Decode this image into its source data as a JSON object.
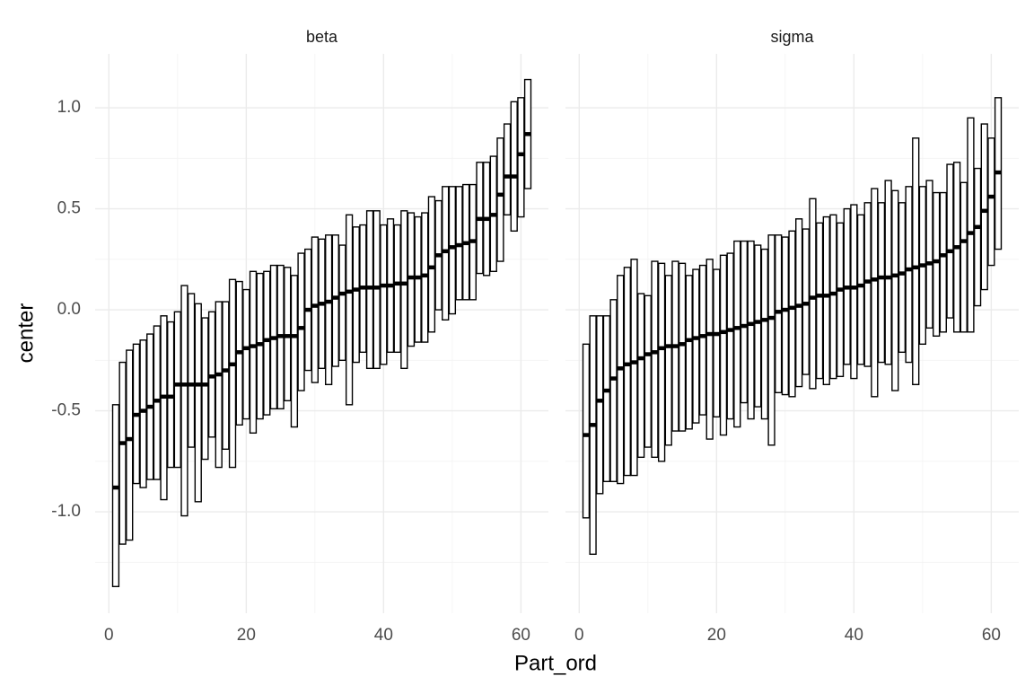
{
  "chart_data": {
    "type": "crossbar",
    "xlabel": "Part_ord",
    "ylabel": "center",
    "xlim": [
      -2,
      64
    ],
    "ylim": [
      -1.502,
      1.267
    ],
    "xticks": [
      0,
      20,
      40,
      60
    ],
    "xminorticks": [
      10,
      30,
      50
    ],
    "yticks": [
      {
        "value": -1,
        "label": "-1.0"
      },
      -0.5,
      {
        "value": 0,
        "label": "0.0"
      },
      0.5,
      {
        "value": 1,
        "label": "1.0"
      }
    ],
    "yminorticks": [
      -1.25,
      -0.75,
      -0.25,
      0.25,
      0.75
    ],
    "grid": true,
    "color": "#000000",
    "fill": "#ffffff",
    "facets": [
      {
        "title": "beta",
        "x": [
          1,
          2,
          3,
          4,
          5,
          6,
          7,
          8,
          9,
          10,
          11,
          12,
          13,
          14,
          15,
          16,
          17,
          18,
          19,
          20,
          21,
          22,
          23,
          24,
          25,
          26,
          27,
          28,
          29,
          30,
          31,
          32,
          33,
          34,
          35,
          36,
          37,
          38,
          39,
          40,
          41,
          42,
          43,
          44,
          45,
          46,
          47,
          48,
          49,
          50,
          51,
          52,
          53,
          54,
          55,
          56,
          57,
          58,
          59,
          60,
          61
        ],
        "center": [
          -0.88,
          -0.66,
          -0.64,
          -0.52,
          -0.5,
          -0.48,
          -0.45,
          -0.43,
          -0.43,
          -0.37,
          -0.37,
          -0.37,
          -0.37,
          -0.37,
          -0.33,
          -0.32,
          -0.3,
          -0.27,
          -0.21,
          -0.19,
          -0.18,
          -0.17,
          -0.15,
          -0.14,
          -0.13,
          -0.13,
          -0.13,
          -0.09,
          0.0,
          0.02,
          0.03,
          0.04,
          0.06,
          0.08,
          0.09,
          0.1,
          0.11,
          0.11,
          0.11,
          0.12,
          0.12,
          0.13,
          0.13,
          0.16,
          0.16,
          0.17,
          0.21,
          0.27,
          0.29,
          0.31,
          0.32,
          0.33,
          0.34,
          0.45,
          0.45,
          0.47,
          0.57,
          0.66,
          0.66,
          0.77,
          0.87
        ],
        "lower": [
          -1.37,
          -1.16,
          -1.14,
          -0.86,
          -0.88,
          -0.84,
          -0.84,
          -0.94,
          -0.78,
          -0.78,
          -1.02,
          -0.68,
          -0.95,
          -0.74,
          -0.63,
          -0.78,
          -0.69,
          -0.78,
          -0.57,
          -0.54,
          -0.61,
          -0.54,
          -0.52,
          -0.49,
          -0.49,
          -0.45,
          -0.58,
          -0.4,
          -0.3,
          -0.36,
          -0.29,
          -0.37,
          -0.28,
          -0.25,
          -0.47,
          -0.26,
          -0.21,
          -0.29,
          -0.29,
          -0.27,
          -0.21,
          -0.21,
          -0.29,
          -0.18,
          -0.16,
          -0.16,
          -0.11,
          0.0,
          -0.05,
          -0.02,
          0.05,
          0.05,
          0.05,
          0.18,
          0.17,
          0.19,
          0.24,
          0.47,
          0.39,
          0.46,
          0.6
        ],
        "upper": [
          -0.47,
          -0.26,
          -0.2,
          -0.17,
          -0.15,
          -0.12,
          -0.08,
          -0.03,
          -0.06,
          -0.01,
          0.12,
          0.08,
          0.03,
          -0.04,
          -0.01,
          0.04,
          0.04,
          0.15,
          0.14,
          0.1,
          0.19,
          0.18,
          0.19,
          0.22,
          0.22,
          0.21,
          0.17,
          0.28,
          0.3,
          0.36,
          0.35,
          0.37,
          0.37,
          0.32,
          0.47,
          0.41,
          0.42,
          0.49,
          0.49,
          0.42,
          0.45,
          0.42,
          0.49,
          0.48,
          0.46,
          0.48,
          0.56,
          0.54,
          0.61,
          0.61,
          0.61,
          0.62,
          0.62,
          0.73,
          0.73,
          0.76,
          0.85,
          0.92,
          1.03,
          1.05,
          1.14
        ]
      },
      {
        "title": "sigma",
        "x": [
          1,
          2,
          3,
          4,
          5,
          6,
          7,
          8,
          9,
          10,
          11,
          12,
          13,
          14,
          15,
          16,
          17,
          18,
          19,
          20,
          21,
          22,
          23,
          24,
          25,
          26,
          27,
          28,
          29,
          30,
          31,
          32,
          33,
          34,
          35,
          36,
          37,
          38,
          39,
          40,
          41,
          42,
          43,
          44,
          45,
          46,
          47,
          48,
          49,
          50,
          51,
          52,
          53,
          54,
          55,
          56,
          57,
          58,
          59,
          60,
          61
        ],
        "center": [
          -0.62,
          -0.57,
          -0.45,
          -0.4,
          -0.34,
          -0.29,
          -0.27,
          -0.26,
          -0.24,
          -0.22,
          -0.21,
          -0.19,
          -0.18,
          -0.18,
          -0.17,
          -0.15,
          -0.14,
          -0.13,
          -0.12,
          -0.12,
          -0.11,
          -0.1,
          -0.09,
          -0.08,
          -0.07,
          -0.06,
          -0.05,
          -0.04,
          -0.01,
          0.0,
          0.01,
          0.02,
          0.03,
          0.06,
          0.07,
          0.07,
          0.08,
          0.1,
          0.11,
          0.11,
          0.12,
          0.14,
          0.15,
          0.16,
          0.16,
          0.17,
          0.18,
          0.2,
          0.21,
          0.22,
          0.23,
          0.24,
          0.27,
          0.29,
          0.31,
          0.34,
          0.38,
          0.41,
          0.49,
          0.56,
          0.68
        ],
        "lower": [
          -1.03,
          -1.21,
          -0.91,
          -0.85,
          -0.85,
          -0.86,
          -0.82,
          -0.82,
          -0.73,
          -0.68,
          -0.73,
          -0.75,
          -0.67,
          -0.6,
          -0.6,
          -0.59,
          -0.56,
          -0.52,
          -0.64,
          -0.53,
          -0.62,
          -0.54,
          -0.58,
          -0.46,
          -0.54,
          -0.48,
          -0.54,
          -0.67,
          -0.41,
          -0.42,
          -0.43,
          -0.38,
          -0.32,
          -0.39,
          -0.34,
          -0.37,
          -0.34,
          -0.33,
          -0.27,
          -0.34,
          -0.27,
          -0.28,
          -0.43,
          -0.26,
          -0.27,
          -0.4,
          -0.21,
          -0.26,
          -0.37,
          -0.17,
          -0.09,
          -0.13,
          -0.11,
          -0.04,
          -0.11,
          -0.11,
          -0.11,
          0.02,
          0.1,
          0.22,
          0.3
        ],
        "upper": [
          -0.17,
          -0.03,
          -0.03,
          -0.03,
          0.05,
          0.17,
          0.21,
          0.25,
          0.08,
          0.07,
          0.24,
          0.23,
          0.17,
          0.24,
          0.23,
          0.17,
          0.2,
          0.22,
          0.25,
          0.2,
          0.27,
          0.28,
          0.34,
          0.34,
          0.34,
          0.32,
          0.3,
          0.37,
          0.37,
          0.36,
          0.39,
          0.45,
          0.4,
          0.55,
          0.43,
          0.46,
          0.47,
          0.43,
          0.5,
          0.52,
          0.47,
          0.53,
          0.6,
          0.53,
          0.64,
          0.59,
          0.53,
          0.61,
          0.85,
          0.61,
          0.64,
          0.58,
          0.58,
          0.72,
          0.73,
          0.63,
          0.95,
          0.7,
          0.92,
          0.85,
          1.05
        ]
      }
    ]
  }
}
